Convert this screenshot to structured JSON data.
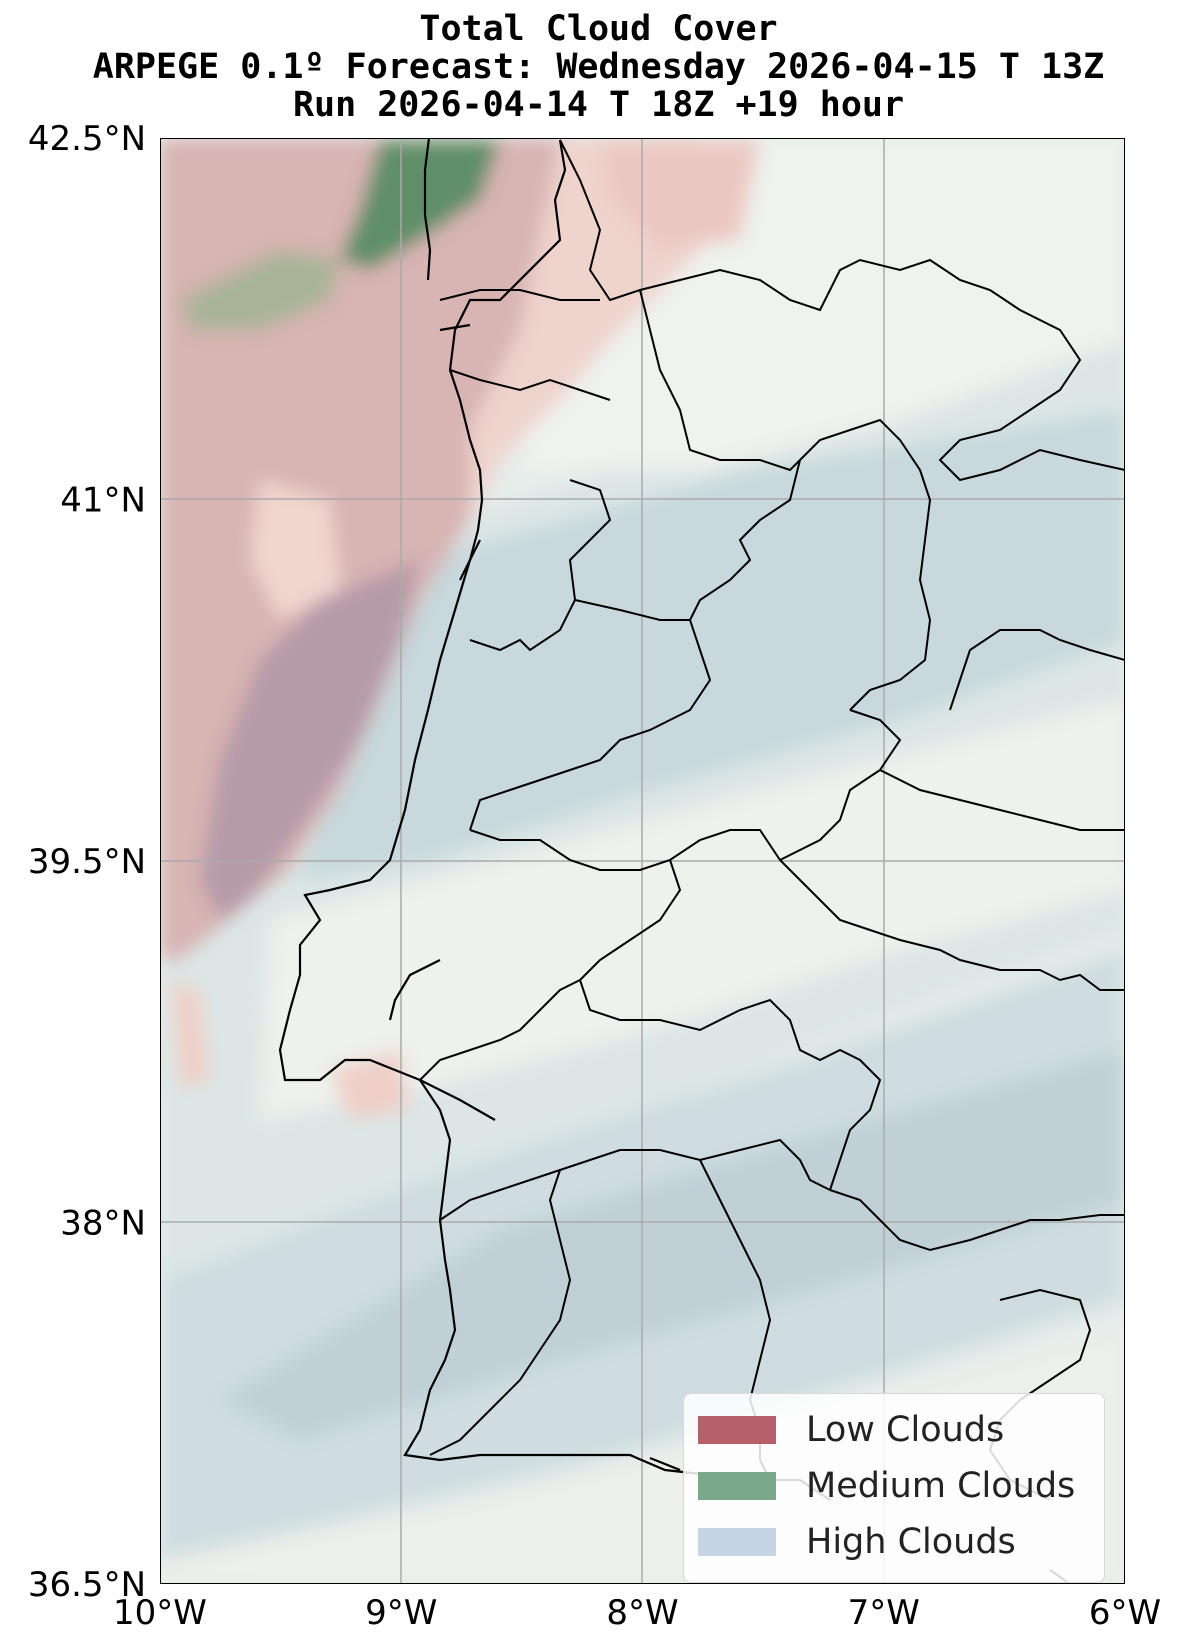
{
  "title": {
    "line1": "Total Cloud Cover",
    "line2": "ARPEGE 0.1º Forecast: Wednesday 2026-04-15 T 13Z",
    "line3": "Run 2026-04-14 T 18Z +19 hour"
  },
  "axes": {
    "y_ticks": [
      {
        "value": 42.5,
        "label": "42.5°N"
      },
      {
        "value": 41.0,
        "label": "41°N"
      },
      {
        "value": 39.5,
        "label": "39.5°N"
      },
      {
        "value": 38.0,
        "label": "38°N"
      },
      {
        "value": 36.5,
        "label": "36.5°N"
      }
    ],
    "x_ticks": [
      {
        "value": -10,
        "label": "10°W"
      },
      {
        "value": -9,
        "label": "9°W"
      },
      {
        "value": -8,
        "label": "8°W"
      },
      {
        "value": -7,
        "label": "7°W"
      },
      {
        "value": -6,
        "label": "6°W"
      }
    ],
    "lon_range": [
      -10,
      -6
    ],
    "lat_range": [
      36.5,
      42.5
    ],
    "grid": true
  },
  "legend": {
    "position": "bottom-right",
    "items": [
      {
        "label": "Low Clouds",
        "color": "#b5606a"
      },
      {
        "label": "Medium Clouds",
        "color": "#7aa88a"
      },
      {
        "label": "High Clouds",
        "color": "#c6d4e4"
      }
    ]
  },
  "colors": {
    "land_base": "#f1f3ee",
    "low_cloud_light": "#f0d2cd",
    "low_cloud": "#d8b2b2",
    "low_high_overlap": "#b9a0ac",
    "medium_cloud": "#5f8f68",
    "medium_cloud_light": "#9ab090",
    "high_cloud_light": "#dfe8e8",
    "high_cloud": "#ccdde0",
    "high_cloud_dark": "#c2d2d8",
    "borders": "#000000",
    "grid": "#aaaaaa"
  }
}
